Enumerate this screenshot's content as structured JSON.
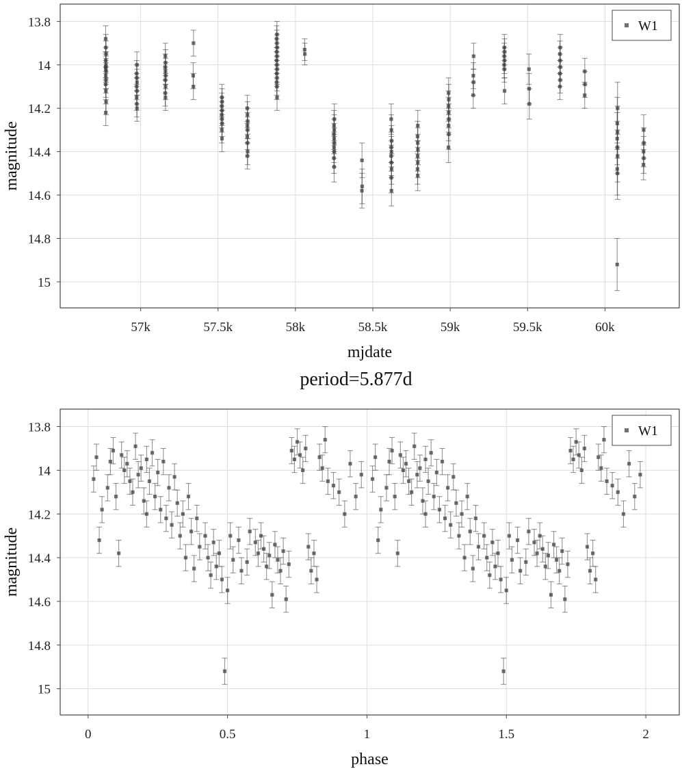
{
  "chart_data": [
    {
      "type": "scatter",
      "title": "",
      "xlabel": "mjdate",
      "ylabel": "magnitude",
      "y_inverted": true,
      "xlim": [
        56480,
        60480
      ],
      "ylim": [
        13.72,
        15.12
      ],
      "x_ticks": [
        57000,
        57500,
        58000,
        58500,
        59000,
        59500,
        60000
      ],
      "x_tick_labels": [
        "57k",
        "57.5k",
        "58k",
        "58.5k",
        "59k",
        "59.5k",
        "60k"
      ],
      "y_ticks": [
        13.8,
        14.0,
        14.2,
        14.4,
        14.6,
        14.8,
        15.0
      ],
      "y_tick_labels": [
        "13.8",
        "14",
        "14.2",
        "14.4",
        "14.6",
        "14.8",
        "15"
      ],
      "grid": true,
      "legend": {
        "position": "top-right",
        "entries": [
          "W1"
        ]
      },
      "series": [
        {
          "name": "W1",
          "epochs": [
            {
              "x": 56775,
              "mags": [
                13.88,
                13.92,
                13.95,
                13.98,
                14.0,
                14.01,
                14.02,
                14.03,
                14.05,
                14.07,
                14.09,
                14.12,
                14.17,
                14.22
              ],
              "err": 0.06
            },
            {
              "x": 56975,
              "mags": [
                14.0,
                14.04,
                14.06,
                14.08,
                14.1,
                14.12,
                14.15,
                14.18,
                14.2
              ],
              "err": 0.06
            },
            {
              "x": 57160,
              "mags": [
                13.96,
                13.99,
                14.01,
                14.03,
                14.05,
                14.07,
                14.1,
                14.13,
                14.15
              ],
              "err": 0.06
            },
            {
              "x": 57340,
              "mags": [
                13.9,
                14.05,
                14.1
              ],
              "err": 0.06
            },
            {
              "x": 57525,
              "mags": [
                14.15,
                14.17,
                14.19,
                14.21,
                14.23,
                14.25,
                14.27,
                14.3,
                14.34
              ],
              "err": 0.06
            },
            {
              "x": 57690,
              "mags": [
                14.2,
                14.23,
                14.26,
                14.28,
                14.3,
                14.33,
                14.36,
                14.4,
                14.42
              ],
              "err": 0.06
            },
            {
              "x": 57880,
              "mags": [
                13.86,
                13.88,
                13.9,
                13.92,
                13.94,
                13.96,
                13.98,
                14.0,
                14.02,
                14.04,
                14.06,
                14.08,
                14.1,
                14.15
              ],
              "err": 0.06
            },
            {
              "x": 58060,
              "mags": [
                13.93,
                13.95
              ],
              "err": 0.05
            },
            {
              "x": 58250,
              "mags": [
                14.25,
                14.28,
                14.3,
                14.32,
                14.34,
                14.36,
                14.38,
                14.4,
                14.43,
                14.47
              ],
              "err": 0.07
            },
            {
              "x": 58430,
              "mags": [
                14.44,
                14.56,
                14.58
              ],
              "err": 0.08
            },
            {
              "x": 58620,
              "mags": [
                14.25,
                14.3,
                14.35,
                14.38,
                14.4,
                14.42,
                14.45,
                14.48,
                14.52,
                14.58
              ],
              "err": 0.07
            },
            {
              "x": 58790,
              "mags": [
                14.28,
                14.33,
                14.36,
                14.39,
                14.42,
                14.45,
                14.48,
                14.51
              ],
              "err": 0.07
            },
            {
              "x": 58990,
              "mags": [
                14.13,
                14.16,
                14.19,
                14.22,
                14.25,
                14.28,
                14.32,
                14.38
              ],
              "err": 0.07
            },
            {
              "x": 59150,
              "mags": [
                13.96,
                14.05,
                14.08,
                14.14
              ],
              "err": 0.06
            },
            {
              "x": 59350,
              "mags": [
                13.92,
                13.94,
                13.96,
                13.98,
                14.0,
                14.02,
                14.12
              ],
              "err": 0.06
            },
            {
              "x": 59510,
              "mags": [
                14.02,
                14.11,
                14.18
              ],
              "err": 0.07
            },
            {
              "x": 59710,
              "mags": [
                13.92,
                13.95,
                13.98,
                14.01,
                14.04,
                14.07,
                14.1
              ],
              "err": 0.06
            },
            {
              "x": 59870,
              "mags": [
                14.03,
                14.09,
                14.14
              ],
              "err": 0.06
            },
            {
              "x": 60080,
              "mags": [
                14.2,
                14.27,
                14.31,
                14.34,
                14.38,
                14.42,
                14.48,
                14.5,
                14.92
              ],
              "err": 0.12
            },
            {
              "x": 60250,
              "mags": [
                14.3,
                14.36,
                14.4,
                14.43,
                14.46
              ],
              "err": 0.07
            }
          ]
        }
      ]
    },
    {
      "type": "scatter",
      "title": "period=5.877d",
      "xlabel": "phase",
      "ylabel": "magnitude",
      "y_inverted": true,
      "xlim": [
        -0.1,
        2.12
      ],
      "ylim": [
        13.72,
        15.12
      ],
      "x_ticks": [
        0,
        0.5,
        1,
        1.5,
        2
      ],
      "x_tick_labels": [
        "0",
        "0.5",
        "1",
        "1.5",
        "2"
      ],
      "y_ticks": [
        13.8,
        14.0,
        14.2,
        14.4,
        14.6,
        14.8,
        15.0
      ],
      "y_tick_labels": [
        "13.8",
        "14",
        "14.2",
        "14.4",
        "14.6",
        "14.8",
        "15"
      ],
      "grid": true,
      "legend": {
        "position": "top-right",
        "entries": [
          "W1"
        ]
      },
      "phase_repeat": 1,
      "series": [
        {
          "name": "W1",
          "err": 0.06,
          "points": [
            [
              0.02,
              14.04
            ],
            [
              0.03,
              13.94
            ],
            [
              0.04,
              14.32
            ],
            [
              0.05,
              14.18
            ],
            [
              0.07,
              14.08
            ],
            [
              0.08,
              13.96
            ],
            [
              0.09,
              13.91
            ],
            [
              0.1,
              14.12
            ],
            [
              0.11,
              14.38
            ],
            [
              0.12,
              13.93
            ],
            [
              0.13,
              14.0
            ],
            [
              0.14,
              13.97
            ],
            [
              0.15,
              14.05
            ],
            [
              0.16,
              14.1
            ],
            [
              0.17,
              13.89
            ],
            [
              0.18,
              14.02
            ],
            [
              0.19,
              13.99
            ],
            [
              0.2,
              14.14
            ],
            [
              0.21,
              13.95
            ],
            [
              0.21,
              14.2
            ],
            [
              0.22,
              14.05
            ],
            [
              0.23,
              13.92
            ],
            [
              0.24,
              14.12
            ],
            [
              0.25,
              14.01
            ],
            [
              0.26,
              14.18
            ],
            [
              0.27,
              13.96
            ],
            [
              0.28,
              14.22
            ],
            [
              0.29,
              14.08
            ],
            [
              0.3,
              14.25
            ],
            [
              0.31,
              14.03
            ],
            [
              0.32,
              14.15
            ],
            [
              0.33,
              14.3
            ],
            [
              0.34,
              14.2
            ],
            [
              0.35,
              14.4
            ],
            [
              0.36,
              14.12
            ],
            [
              0.37,
              14.28
            ],
            [
              0.38,
              14.45
            ],
            [
              0.39,
              14.22
            ],
            [
              0.4,
              14.35
            ],
            [
              0.42,
              14.3
            ],
            [
              0.43,
              14.4
            ],
            [
              0.44,
              14.48
            ],
            [
              0.45,
              14.33
            ],
            [
              0.46,
              14.44
            ],
            [
              0.47,
              14.38
            ],
            [
              0.48,
              14.5
            ],
            [
              0.49,
              14.92
            ],
            [
              0.5,
              14.55
            ],
            [
              0.51,
              14.3
            ],
            [
              0.52,
              14.41
            ],
            [
              0.54,
              14.32
            ],
            [
              0.55,
              14.46
            ],
            [
              0.57,
              14.42
            ],
            [
              0.58,
              14.28
            ],
            [
              0.6,
              14.33
            ],
            [
              0.61,
              14.38
            ],
            [
              0.62,
              14.3
            ],
            [
              0.63,
              14.36
            ],
            [
              0.64,
              14.44
            ],
            [
              0.65,
              14.39
            ],
            [
              0.66,
              14.57
            ],
            [
              0.67,
              14.34
            ],
            [
              0.68,
              14.41
            ],
            [
              0.69,
              14.46
            ],
            [
              0.7,
              14.37
            ],
            [
              0.71,
              14.59
            ],
            [
              0.72,
              14.43
            ],
            [
              0.73,
              13.91
            ],
            [
              0.74,
              13.95
            ],
            [
              0.75,
              13.87
            ],
            [
              0.76,
              13.93
            ],
            [
              0.77,
              14.0
            ],
            [
              0.78,
              13.9
            ],
            [
              0.79,
              14.35
            ],
            [
              0.8,
              14.46
            ],
            [
              0.81,
              14.38
            ],
            [
              0.82,
              14.5
            ],
            [
              0.83,
              13.94
            ],
            [
              0.84,
              13.99
            ],
            [
              0.85,
              13.86
            ],
            [
              0.86,
              14.05
            ],
            [
              0.88,
              14.07
            ],
            [
              0.9,
              14.1
            ],
            [
              0.92,
              14.2
            ],
            [
              0.94,
              13.97
            ],
            [
              0.96,
              14.12
            ],
            [
              0.98,
              14.02
            ]
          ]
        }
      ]
    }
  ]
}
